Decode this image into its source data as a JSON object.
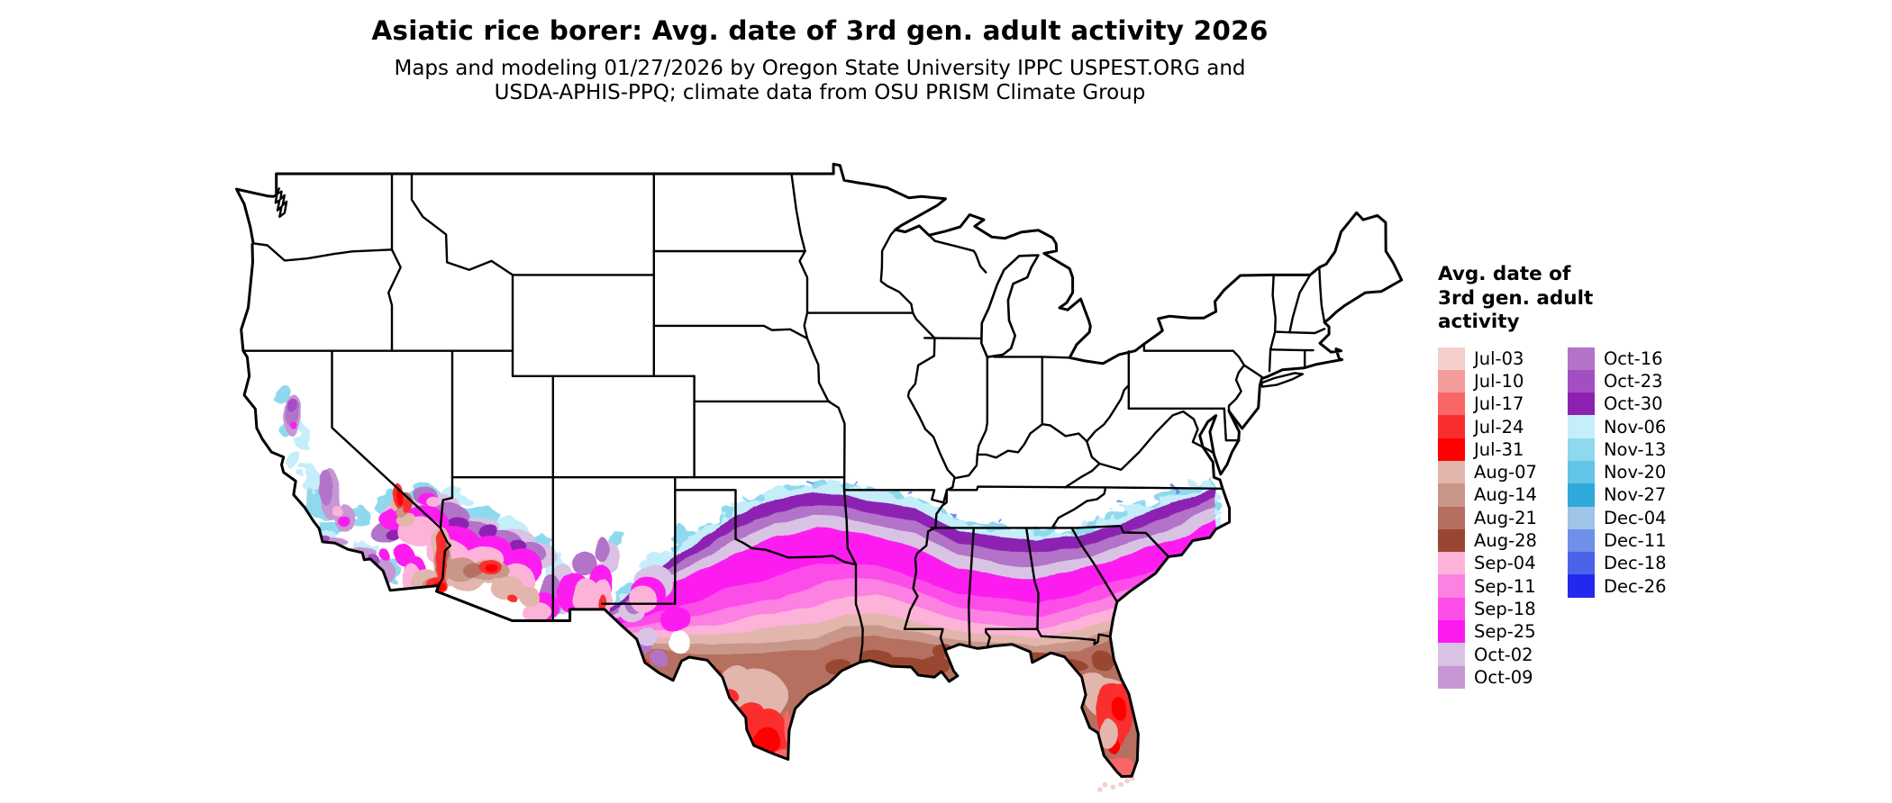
{
  "header": {
    "title": "Asiatic rice borer: Avg. date of 3rd gen. adult activity 2026",
    "subtitle_line1": "Maps and modeling 01/27/2026 by Oregon State University IPPC USPEST.ORG and",
    "subtitle_line2": "USDA-APHIS-PPQ; climate data from OSU PRISM Climate Group"
  },
  "legend": {
    "title_lines": [
      "Avg. date of",
      "3rd gen. adult",
      "activity"
    ],
    "columns": [
      [
        {
          "label": "Jul-03",
          "color": "#F4CFCC"
        },
        {
          "label": "Jul-10",
          "color": "#F49C9B"
        },
        {
          "label": "Jul-17",
          "color": "#F96667"
        },
        {
          "label": "Jul-24",
          "color": "#FB2E2E"
        },
        {
          "label": "Jul-31",
          "color": "#FE0000"
        },
        {
          "label": "Aug-07",
          "color": "#E2B6AC"
        },
        {
          "label": "Aug-14",
          "color": "#C9968A"
        },
        {
          "label": "Aug-21",
          "color": "#B56F60"
        },
        {
          "label": "Aug-28",
          "color": "#9A4632"
        },
        {
          "label": "Sep-04",
          "color": "#FDB3D9"
        },
        {
          "label": "Sep-11",
          "color": "#FD80E3"
        },
        {
          "label": "Sep-18",
          "color": "#FD4EE9"
        },
        {
          "label": "Sep-25",
          "color": "#FD1AF0"
        },
        {
          "label": "Oct-02",
          "color": "#D9C3E5"
        },
        {
          "label": "Oct-09",
          "color": "#C796D4"
        }
      ],
      [
        {
          "label": "Oct-16",
          "color": "#B273C8"
        },
        {
          "label": "Oct-23",
          "color": "#A44EC4"
        },
        {
          "label": "Oct-30",
          "color": "#8D22B2"
        },
        {
          "label": "Nov-06",
          "color": "#C5EDFA"
        },
        {
          "label": "Nov-13",
          "color": "#8FD9EF"
        },
        {
          "label": "Nov-20",
          "color": "#62C4E7"
        },
        {
          "label": "Nov-27",
          "color": "#2FA9DC"
        },
        {
          "label": "Dec-04",
          "color": "#9FC4E8"
        },
        {
          "label": "Dec-11",
          "color": "#6E8FEA"
        },
        {
          "label": "Dec-18",
          "color": "#4A63E8"
        },
        {
          "label": "Dec-26",
          "color": "#2428EF"
        }
      ]
    ]
  },
  "map": {
    "land_color": "#ffffff",
    "border_color": "#000000"
  }
}
